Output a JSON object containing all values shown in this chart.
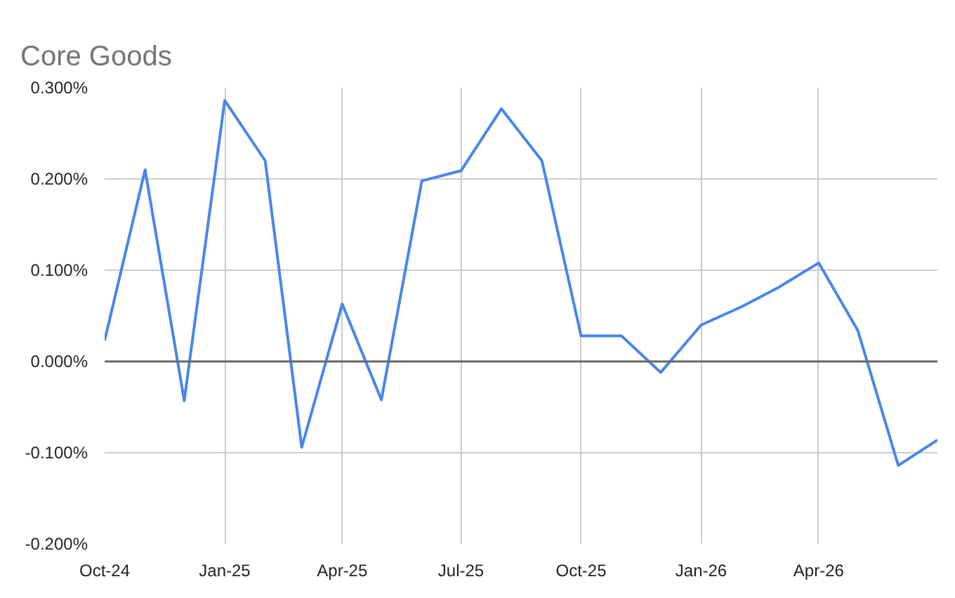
{
  "chart_data": {
    "type": "line",
    "title": "Core Goods",
    "x": [
      "2024-10",
      "2024-11",
      "2024-12",
      "2025-01",
      "2025-02",
      "2025-03",
      "2025-04",
      "2025-05",
      "2025-06",
      "2025-07",
      "2025-08",
      "2025-09",
      "2025-10",
      "2025-11",
      "2025-12",
      "2026-01",
      "2026-02",
      "2026-03",
      "2026-04",
      "2026-05",
      "2026-06",
      "2026-07"
    ],
    "series": [
      {
        "color": "#4a86e8",
        "values": [
          0.023,
          0.21,
          -0.043,
          0.286,
          0.22,
          -0.094,
          0.063,
          -0.042,
          0.198,
          0.209,
          0.277,
          0.22,
          0.028,
          0.028,
          -0.012,
          0.04,
          0.06,
          0.081,
          0.108,
          0.034,
          -0.114,
          -0.086
        ]
      }
    ],
    "xlim": [
      "2024-10",
      "2026-07"
    ],
    "xticks": [
      {
        "value": "2024-10",
        "label": "Oct-24"
      },
      {
        "value": "2025-01",
        "label": "Jan-25"
      },
      {
        "value": "2025-04",
        "label": "Apr-25"
      },
      {
        "value": "2025-07",
        "label": "Jul-25"
      },
      {
        "value": "2025-10",
        "label": "Oct-25"
      },
      {
        "value": "2026-01",
        "label": "Jan-26"
      },
      {
        "value": "2026-04",
        "label": "Apr-26"
      }
    ],
    "ylim": [
      -0.2,
      0.3
    ],
    "yticks": [
      {
        "value": -0.2,
        "label": "-0.200%"
      },
      {
        "value": -0.1,
        "label": "-0.100%"
      },
      {
        "value": 0,
        "label": "0.000%"
      },
      {
        "value": 0.1,
        "label": "0.100%"
      },
      {
        "value": 0.2,
        "label": "0.200%"
      },
      {
        "value": 0.3,
        "label": "0.300%"
      }
    ],
    "ref_lines": [
      {
        "axis": "y",
        "value": 0,
        "color": "#666666"
      }
    ],
    "grid": true,
    "marker": "none",
    "line_style": "solid"
  }
}
